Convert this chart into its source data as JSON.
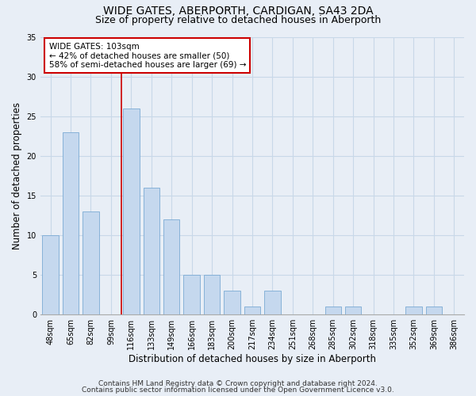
{
  "title": "WIDE GATES, ABERPORTH, CARDIGAN, SA43 2DA",
  "subtitle": "Size of property relative to detached houses in Aberporth",
  "xlabel": "Distribution of detached houses by size in Aberporth",
  "ylabel": "Number of detached properties",
  "categories": [
    "48sqm",
    "65sqm",
    "82sqm",
    "99sqm",
    "116sqm",
    "133sqm",
    "149sqm",
    "166sqm",
    "183sqm",
    "200sqm",
    "217sqm",
    "234sqm",
    "251sqm",
    "268sqm",
    "285sqm",
    "302sqm",
    "318sqm",
    "335sqm",
    "352sqm",
    "369sqm",
    "386sqm"
  ],
  "values": [
    10,
    23,
    13,
    0,
    26,
    16,
    12,
    5,
    5,
    3,
    1,
    3,
    0,
    0,
    1,
    1,
    0,
    0,
    1,
    1,
    0
  ],
  "bar_color": "#c5d8ee",
  "bar_edge_color": "#7aaad4",
  "grid_color": "#c8d8e8",
  "bg_color": "#e8eef6",
  "redline_x": 4.0,
  "annotation_text": "WIDE GATES: 103sqm\n← 42% of detached houses are smaller (50)\n58% of semi-detached houses are larger (69) →",
  "annotation_box_color": "#ffffff",
  "annotation_box_edge": "#cc0000",
  "ylim": [
    0,
    35
  ],
  "yticks": [
    0,
    5,
    10,
    15,
    20,
    25,
    30,
    35
  ],
  "footer1": "Contains HM Land Registry data © Crown copyright and database right 2024.",
  "footer2": "Contains public sector information licensed under the Open Government Licence v3.0.",
  "title_fontsize": 10,
  "subtitle_fontsize": 9,
  "label_fontsize": 8.5,
  "tick_fontsize": 7,
  "footer_fontsize": 6.5,
  "bar_width": 0.8
}
